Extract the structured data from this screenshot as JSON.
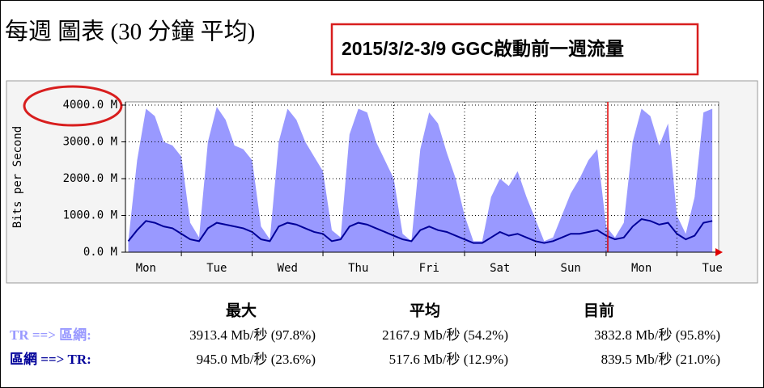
{
  "chart_data": {
    "type": "area",
    "title": "每週 圖表 (30 分鐘 平均)",
    "annotation": "2015/3/2-3/9 GGC啟動前一週流量",
    "ylabel": "Bits per Second",
    "x": [
      0.25,
      0.375,
      0.5,
      0.625,
      0.75,
      0.875,
      1,
      1.125,
      1.25,
      1.375,
      1.5,
      1.625,
      1.75,
      1.875,
      2,
      2.125,
      2.25,
      2.375,
      2.5,
      2.625,
      2.75,
      2.875,
      3,
      3.125,
      3.25,
      3.375,
      3.5,
      3.625,
      3.75,
      3.875,
      4,
      4.125,
      4.25,
      4.375,
      4.5,
      4.625,
      4.75,
      4.875,
      5,
      5.125,
      5.25,
      5.375,
      5.5,
      5.625,
      5.75,
      5.875,
      6,
      6.125,
      6.25,
      6.375,
      6.5,
      6.625,
      6.75,
      6.875,
      7,
      7.125,
      7.25,
      7.375,
      7.5,
      7.625,
      7.75,
      7.875,
      8,
      8.125,
      8.25,
      8.375,
      8.5
    ],
    "xlim": [
      0.21,
      8.59
    ],
    "xticks": [
      {
        "value": 0.5,
        "label": "Mon"
      },
      {
        "value": 1.5,
        "label": "Tue"
      },
      {
        "value": 2.5,
        "label": "Wed"
      },
      {
        "value": 3.5,
        "label": "Thu"
      },
      {
        "value": 4.5,
        "label": "Fri"
      },
      {
        "value": 5.5,
        "label": "Sat"
      },
      {
        "value": 6.5,
        "label": "Sun"
      },
      {
        "value": 7.5,
        "label": "Mon"
      },
      {
        "value": 8.5,
        "label": "Tue"
      }
    ],
    "ylim": [
      0,
      4000
    ],
    "yticks": [
      {
        "value": 0,
        "label": "0.0 M"
      },
      {
        "value": 1000,
        "label": "1000.0 M"
      },
      {
        "value": 2000,
        "label": "2000.0 M"
      },
      {
        "value": 3000,
        "label": "3000.0 M"
      },
      {
        "value": 4000,
        "label": "4000.0 M"
      }
    ],
    "grid": true,
    "stat_headers": [
      "最大",
      "平均",
      "目前"
    ],
    "series": [
      {
        "name": "TR ==> 區網:",
        "color": "#9999ff",
        "style": "area",
        "values": [
          300,
          2500,
          3900,
          3700,
          3000,
          2900,
          2600,
          800,
          400,
          3000,
          3950,
          3600,
          2900,
          2800,
          2500,
          700,
          350,
          3000,
          3900,
          3600,
          3000,
          2600,
          2200,
          600,
          400,
          3200,
          3900,
          3800,
          3000,
          2500,
          2000,
          500,
          300,
          2800,
          3800,
          3500,
          2700,
          2000,
          1000,
          300,
          300,
          1500,
          2000,
          1800,
          2200,
          1500,
          900,
          300,
          400,
          1000,
          1600,
          2000,
          2500,
          2800,
          700,
          400,
          800,
          3000,
          3900,
          3700,
          2900,
          3500,
          1000,
          500,
          1500,
          3800,
          3900
        ],
        "stats": [
          "3913.4 Mb/秒 (97.8%)",
          "2167.9 Mb/秒 (54.2%)",
          "3832.8 Mb/秒 (95.8%)"
        ]
      },
      {
        "name": "區網 ==> TR:",
        "color": "#000099",
        "style": "line",
        "values": [
          300,
          600,
          850,
          800,
          700,
          650,
          500,
          350,
          300,
          650,
          800,
          750,
          700,
          650,
          550,
          350,
          300,
          700,
          800,
          750,
          650,
          550,
          500,
          300,
          350,
          700,
          800,
          750,
          650,
          550,
          450,
          350,
          300,
          600,
          700,
          600,
          550,
          450,
          350,
          250,
          250,
          400,
          550,
          450,
          500,
          400,
          300,
          250,
          300,
          400,
          500,
          500,
          550,
          600,
          450,
          350,
          400,
          700,
          900,
          850,
          750,
          800,
          500,
          350,
          450,
          800,
          850
        ],
        "stats": [
          "945.0 Mb/秒 (23.6%)",
          "517.6 Mb/秒 (12.9%)",
          "839.5 Mb/秒 (21.0%)"
        ]
      }
    ]
  }
}
